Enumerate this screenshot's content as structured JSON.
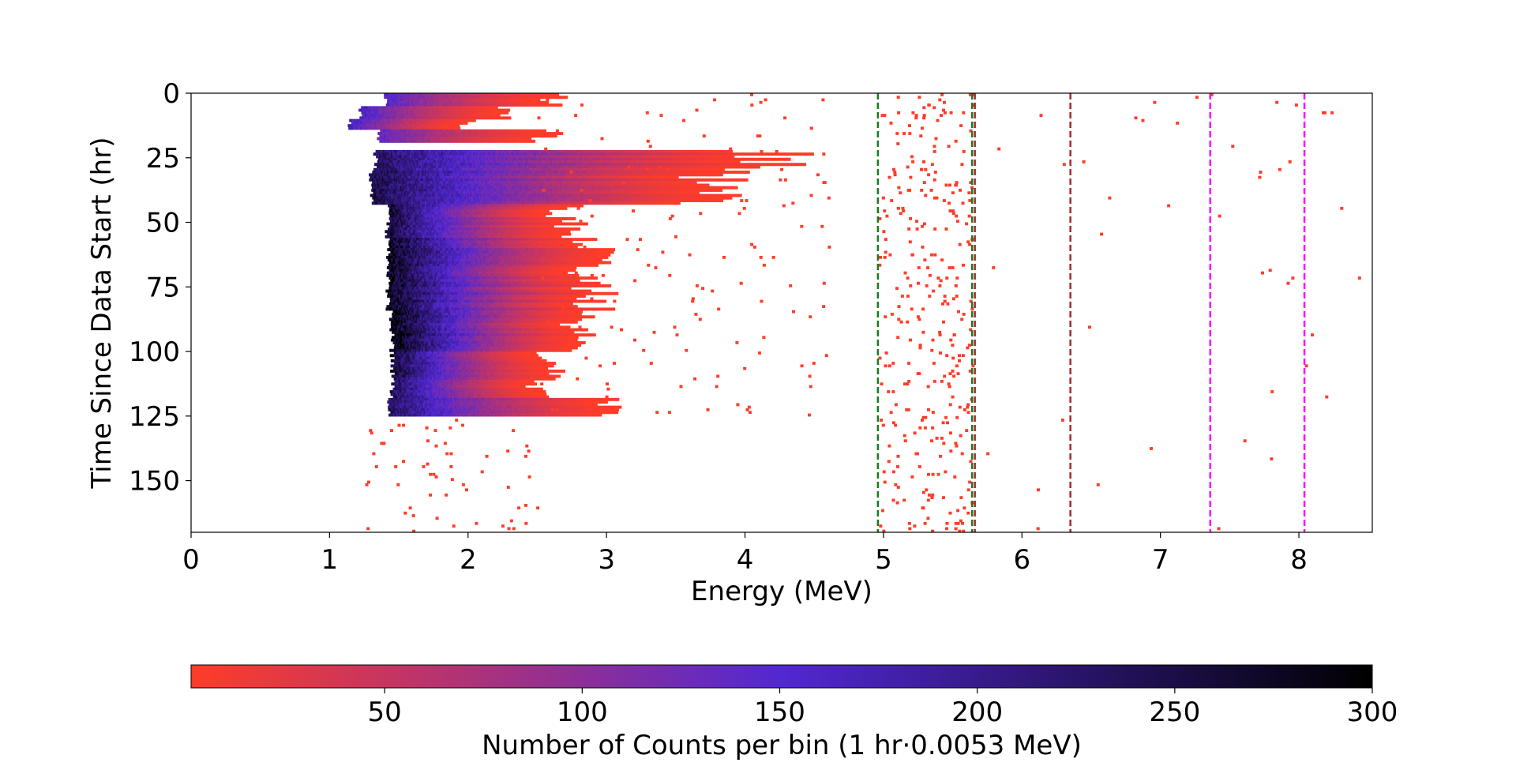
{
  "chart_data": {
    "type": "heatmap",
    "title": "",
    "xlabel": "Energy (MeV)",
    "ylabel": "Time Since Data Start (hr)",
    "xlim": [
      0,
      8.53
    ],
    "ylim": [
      170,
      0
    ],
    "y_inverted": true,
    "x_ticks": [
      "0",
      "1",
      "2",
      "3",
      "4",
      "5",
      "6",
      "7",
      "8"
    ],
    "x_tick_values": [
      0,
      1,
      2,
      3,
      4,
      5,
      6,
      7,
      8
    ],
    "y_ticks": [
      "0",
      "25",
      "50",
      "75",
      "100",
      "125",
      "150"
    ],
    "y_tick_values": [
      0,
      25,
      50,
      75,
      100,
      125,
      150
    ],
    "bin_width_hr": 1,
    "bin_width_mev": 0.0053,
    "colorbar": {
      "label": "Number of Counts per bin (1 hr·0.0053 MeV)",
      "range": [
        1,
        300
      ],
      "ticks": [
        "50",
        "100",
        "150",
        "200",
        "250",
        "300"
      ],
      "tick_values": [
        50,
        100,
        150,
        200,
        250,
        300
      ],
      "colors": [
        "#ff3c28",
        "#5228d2",
        "#000000"
      ],
      "color_stops": [
        0,
        0.5,
        1
      ]
    },
    "vertical_lines": [
      {
        "x": 4.96,
        "color": "#1a7a1a",
        "style": "dashed"
      },
      {
        "x": 5.64,
        "color": "#1a7a1a",
        "style": "dashed"
      },
      {
        "x": 5.66,
        "color": "#a52a2a",
        "style": "dashed"
      },
      {
        "x": 6.35,
        "color": "#a52a2a",
        "style": "dashed"
      },
      {
        "x": 7.36,
        "color": "#ff00ff",
        "style": "dashed"
      },
      {
        "x": 8.04,
        "color": "#ff00ff",
        "style": "dashed"
      }
    ],
    "density_bands": [
      {
        "t": [
          0,
          5
        ],
        "emin": 1.4,
        "emax": 2.6,
        "peak": 150
      },
      {
        "t": [
          5,
          10
        ],
        "emin": 1.22,
        "emax": 2.3,
        "peak": 160
      },
      {
        "t": [
          10,
          14
        ],
        "emin": 1.15,
        "emax": 2.0,
        "peak": 170
      },
      {
        "t": [
          14,
          19
        ],
        "emin": 1.35,
        "emax": 2.6,
        "peak": 140
      },
      {
        "t": [
          22,
          30
        ],
        "emin": 1.33,
        "emax": 4.2,
        "peak": 230
      },
      {
        "t": [
          30,
          43
        ],
        "emin": 1.3,
        "emax": 3.8,
        "peak": 250
      },
      {
        "t": [
          43,
          56
        ],
        "emin": 1.42,
        "emax": 2.7,
        "peak": 260
      },
      {
        "t": [
          56,
          84
        ],
        "emin": 1.42,
        "emax": 2.9,
        "peak": 280
      },
      {
        "t": [
          84,
          100
        ],
        "emin": 1.45,
        "emax": 2.8,
        "peak": 290
      },
      {
        "t": [
          100,
          110
        ],
        "emin": 1.45,
        "emax": 2.6,
        "peak": 260
      },
      {
        "t": [
          110,
          118
        ],
        "emin": 1.45,
        "emax": 2.5,
        "peak": 240
      },
      {
        "t": [
          118,
          125
        ],
        "emin": 1.43,
        "emax": 3.1,
        "peak": 230
      }
    ],
    "background_regions": [
      {
        "t": [
          0,
          170
        ],
        "emin": 4.96,
        "emax": 5.64,
        "points": 320
      },
      {
        "t": [
          0,
          125
        ],
        "emin": 2.5,
        "emax": 4.6,
        "points": 150
      },
      {
        "t": [
          125,
          170
        ],
        "emin": 1.25,
        "emax": 2.5,
        "points": 60
      },
      {
        "t": [
          0,
          170
        ],
        "emin": 5.7,
        "emax": 8.5,
        "points": 45
      }
    ]
  }
}
